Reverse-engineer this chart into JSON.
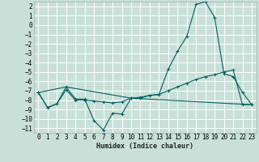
{
  "title": "",
  "xlabel": "Humidex (Indice chaleur)",
  "bg_color": "#c8e0d8",
  "grid_color": "#ffffff",
  "line_color": "#006060",
  "xlim": [
    -0.5,
    23.5
  ],
  "ylim": [
    -11.5,
    2.5
  ],
  "xticks": [
    0,
    1,
    2,
    3,
    4,
    5,
    6,
    7,
    8,
    9,
    10,
    11,
    12,
    13,
    14,
    15,
    16,
    17,
    18,
    19,
    20,
    21,
    22,
    23
  ],
  "yticks": [
    2,
    1,
    0,
    -1,
    -2,
    -3,
    -4,
    -5,
    -6,
    -7,
    -8,
    -9,
    -10,
    -11
  ],
  "line1_x": [
    0,
    1,
    2,
    3,
    4,
    5,
    6,
    7,
    8,
    9,
    10,
    11,
    12,
    13,
    14,
    15,
    16,
    17,
    18,
    19,
    20,
    21,
    22,
    23
  ],
  "line1_y": [
    -7.2,
    -8.8,
    -8.4,
    -6.6,
    -7.9,
    -7.9,
    -10.2,
    -11.2,
    -9.4,
    -9.5,
    -7.8,
    -7.8,
    -7.5,
    -7.4,
    -4.7,
    -2.8,
    -1.2,
    2.2,
    2.5,
    0.8,
    -5.2,
    -5.5,
    -7.2,
    -8.5
  ],
  "line2_x": [
    0,
    1,
    2,
    3,
    4,
    5,
    6,
    7,
    8,
    9,
    10,
    11,
    12,
    13,
    14,
    15,
    16,
    17,
    18,
    19,
    20,
    21,
    22,
    23
  ],
  "line2_y": [
    -7.2,
    -8.8,
    -8.4,
    -6.9,
    -8.0,
    -8.0,
    -8.1,
    -8.2,
    -8.3,
    -8.2,
    -7.8,
    -7.7,
    -7.5,
    -7.4,
    -7.0,
    -6.6,
    -6.2,
    -5.8,
    -5.5,
    -5.3,
    -5.0,
    -4.8,
    -8.5,
    -8.5
  ],
  "line3_x": [
    0,
    3,
    10,
    23
  ],
  "line3_y": [
    -7.2,
    -6.6,
    -7.8,
    -8.5
  ]
}
